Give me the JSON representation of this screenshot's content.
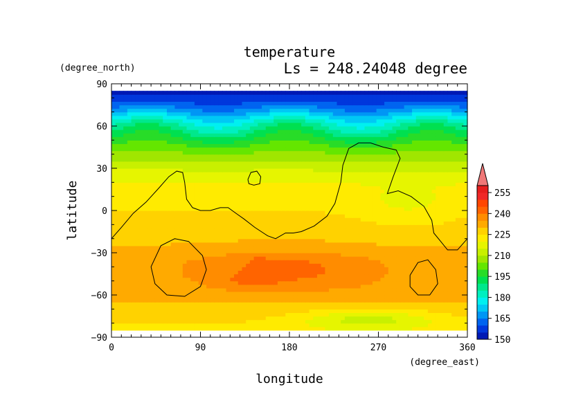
{
  "chart_data": {
    "type": "heatmap",
    "title": "temperature",
    "subtitle": "Ls = 248.24048 degree",
    "xlabel": "longitude",
    "ylabel": "latitude",
    "xunits": "(degree_east)",
    "yunits": "(degree_north)",
    "xlim": [
      0,
      360
    ],
    "ylim": [
      -90,
      90
    ],
    "xticks": [
      "0",
      "90",
      "180",
      "270",
      "360"
    ],
    "yticks": [
      "90",
      "60",
      "30",
      "0",
      "−30",
      "−60",
      "−90"
    ],
    "field_lat_range": [
      -85,
      85
    ],
    "colorbar": {
      "levels": [
        145,
        150,
        155,
        160,
        165,
        170,
        175,
        180,
        185,
        190,
        195,
        200,
        205,
        210,
        215,
        220,
        225,
        230,
        235,
        240,
        245,
        250,
        255,
        260
      ],
      "tick_labels": [
        "150",
        "165",
        "180",
        "195",
        "210",
        "225",
        "240",
        "255"
      ],
      "colors": [
        "#0019b4",
        "#0037dc",
        "#0064f0",
        "#0096f5",
        "#00c8f5",
        "#00f0f0",
        "#00f0c0",
        "#00e88c",
        "#00e050",
        "#28dc28",
        "#64e600",
        "#a0e600",
        "#c8f000",
        "#e6f500",
        "#ffeb00",
        "#ffd200",
        "#ffaa00",
        "#ff8c00",
        "#ff6400",
        "#ff4600",
        "#f02828",
        "#e61e1e",
        "#f07878"
      ]
    },
    "zonal_profile": {
      "lat": [
        -85,
        -75,
        -65,
        -55,
        -45,
        -35,
        -25,
        -15,
        -5,
        5,
        15,
        25,
        35,
        45,
        55,
        62,
        68,
        75,
        85
      ],
      "temperature": [
        218,
        222,
        225,
        228,
        228,
        228,
        225,
        223,
        221,
        219,
        218,
        213,
        205,
        197,
        186,
        178,
        168,
        157,
        148
      ]
    },
    "warm_regions": [
      {
        "lon": 180,
        "lat": -42,
        "temperature": 233
      },
      {
        "lon": 135,
        "lat": -50,
        "temperature": 241
      },
      {
        "lon": 150,
        "lat": -36,
        "temperature": 239
      },
      {
        "lon": 260,
        "lat": -78,
        "temperature": 209
      }
    ],
    "contours": [
      {
        "name": "topography outline",
        "points": [
          [
            0,
            -20
          ],
          [
            10,
            -12
          ],
          [
            22,
            -2
          ],
          [
            35,
            6
          ],
          [
            48,
            16
          ],
          [
            58,
            24
          ],
          [
            66,
            28
          ],
          [
            72,
            27
          ],
          [
            74,
            20
          ],
          [
            76,
            8
          ],
          [
            82,
            2
          ],
          [
            90,
            0
          ],
          [
            100,
            0
          ],
          [
            110,
            2
          ],
          [
            118,
            2
          ],
          [
            126,
            -2
          ],
          [
            134,
            -6
          ],
          [
            145,
            -12
          ],
          [
            158,
            -18
          ],
          [
            166,
            -20
          ],
          [
            176,
            -16
          ],
          [
            184,
            -16
          ],
          [
            192,
            -15
          ],
          [
            205,
            -11
          ],
          [
            218,
            -4
          ],
          [
            226,
            5
          ],
          [
            232,
            20
          ],
          [
            234,
            32
          ],
          [
            240,
            44
          ],
          [
            250,
            48
          ],
          [
            262,
            48
          ],
          [
            275,
            45
          ],
          [
            288,
            43
          ],
          [
            292,
            37
          ],
          [
            285,
            24
          ],
          [
            279,
            12
          ],
          [
            290,
            14
          ],
          [
            303,
            10
          ],
          [
            316,
            3
          ],
          [
            324,
            -7
          ],
          [
            326,
            -16
          ],
          [
            333,
            -22
          ],
          [
            340,
            -28
          ],
          [
            350,
            -28
          ],
          [
            360,
            -20
          ]
        ]
      },
      {
        "name": "topography outline",
        "points": [
          [
            138,
            22
          ],
          [
            141,
            27
          ],
          [
            147,
            28
          ],
          [
            151,
            24
          ],
          [
            150,
            19
          ],
          [
            144,
            18
          ],
          [
            139,
            19
          ],
          [
            138,
            22
          ]
        ]
      },
      {
        "name": "topography outline",
        "points": [
          [
            40,
            -40
          ],
          [
            50,
            -25
          ],
          [
            64,
            -20
          ],
          [
            78,
            -22
          ],
          [
            92,
            -32
          ],
          [
            96,
            -42
          ],
          [
            90,
            -54
          ],
          [
            74,
            -61
          ],
          [
            56,
            -60
          ],
          [
            44,
            -52
          ],
          [
            40,
            -40
          ]
        ]
      },
      {
        "name": "topography outline",
        "points": [
          [
            302,
            -46
          ],
          [
            310,
            -37
          ],
          [
            320,
            -35
          ],
          [
            328,
            -42
          ],
          [
            330,
            -52
          ],
          [
            322,
            -60
          ],
          [
            310,
            -60
          ],
          [
            302,
            -54
          ],
          [
            302,
            -46
          ]
        ]
      }
    ]
  }
}
